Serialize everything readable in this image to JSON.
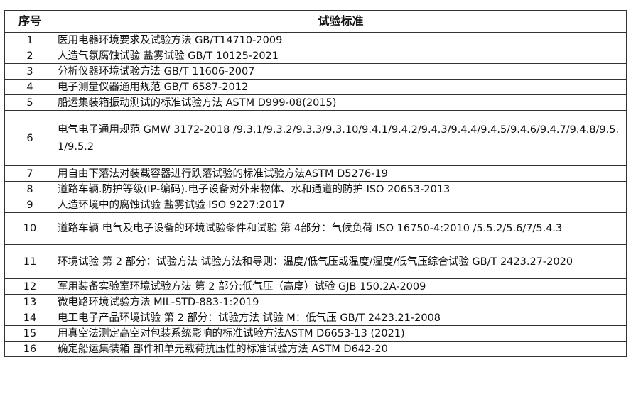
{
  "table": {
    "headers": [
      "序号",
      "试验标准"
    ],
    "rows": [
      {
        "no": "1",
        "standard": "医用电器环境要求及试验方法 GB/T14710-2009"
      },
      {
        "no": "2",
        "standard": "人造气氛腐蚀试验 盐雾试验 GB/T 10125-2021"
      },
      {
        "no": "3",
        "standard": "分析仪器环境试验方法 GB/T 11606-2007"
      },
      {
        "no": "4",
        "standard": "电子测量仪器通用规范 GB/T 6587-2012"
      },
      {
        "no": "5",
        "standard": "船运集装箱振动测试的标准试验方法 ASTM D999-08(2015)"
      },
      {
        "no": "6",
        "standard": "电气电子通用规范 GMW 3172-2018 /9.3.1/9.3.2/9.3.3/9.3.10/9.4.1/9.4.2/9.4.3/9.4.4/9.4.5/9.4.6/9.4.7/9.4.8/9.5.1/9.5.2"
      },
      {
        "no": "7",
        "standard": "用自由下落法对装载容器进行跌落试验的标准试验方法ASTM D5276-19"
      },
      {
        "no": "8",
        "standard": "道路车辆.防护等级(IP-编码).电子设备对外来物体、水和通道的防护 ISO 20653-2013"
      },
      {
        "no": "9",
        "standard": "人造环境中的腐蚀试验 盐雾试验 ISO 9227:2017"
      },
      {
        "no": "10",
        "standard": "道路车辆 电气及电子设备的环境试验条件和试验 第 4部分：气候负荷 ISO 16750-4:2010 /5.5.2/5.6/7/5.4.3"
      },
      {
        "no": "11",
        "standard": "环境试验 第 2 部分：试验方法 试验方法和导则：温度/低气压或温度/湿度/低气压综合试验 GB/T 2423.27-2020"
      },
      {
        "no": "12",
        "standard": "军用装备实验室环境试验方法 第 2 部分:低气压（高度）试验 GJB 150.2A-2009"
      },
      {
        "no": "13",
        "standard": "微电路环境试验方法 MIL-STD-883-1:2019"
      },
      {
        "no": "14",
        "standard": "电工电子产品环境试验 第 2 部分：试验方法 试验 M：低气压 GB/T 2423.21-2008"
      },
      {
        "no": "15",
        "standard": "用真空法测定高空对包装系统影响的标准试验方法ASTM D6653-13 (2021)"
      },
      {
        "no": "16",
        "standard": "确定船运集装箱 部件和单元载荷抗压性的标准试验方法 ASTM D642-20"
      }
    ]
  }
}
